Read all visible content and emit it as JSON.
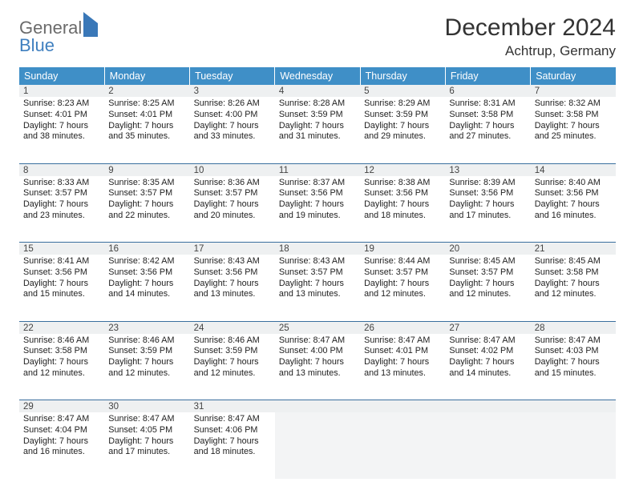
{
  "logo": {
    "line1": "General",
    "line2": "Blue"
  },
  "title": "December 2024",
  "location": "Achtrup, Germany",
  "colors": {
    "header_bg": "#3f8fc7",
    "header_text": "#ffffff",
    "daynum_bg": "#eef0f1",
    "divider": "#3a6f9e",
    "logo_gray": "#6b6b6b",
    "logo_blue": "#3f7fbf"
  },
  "weekdays": [
    "Sunday",
    "Monday",
    "Tuesday",
    "Wednesday",
    "Thursday",
    "Friday",
    "Saturday"
  ],
  "weeks": [
    {
      "nums": [
        "1",
        "2",
        "3",
        "4",
        "5",
        "6",
        "7"
      ],
      "cells": [
        {
          "sunrise": "Sunrise: 8:23 AM",
          "sunset": "Sunset: 4:01 PM",
          "day1": "Daylight: 7 hours",
          "day2": "and 38 minutes."
        },
        {
          "sunrise": "Sunrise: 8:25 AM",
          "sunset": "Sunset: 4:01 PM",
          "day1": "Daylight: 7 hours",
          "day2": "and 35 minutes."
        },
        {
          "sunrise": "Sunrise: 8:26 AM",
          "sunset": "Sunset: 4:00 PM",
          "day1": "Daylight: 7 hours",
          "day2": "and 33 minutes."
        },
        {
          "sunrise": "Sunrise: 8:28 AM",
          "sunset": "Sunset: 3:59 PM",
          "day1": "Daylight: 7 hours",
          "day2": "and 31 minutes."
        },
        {
          "sunrise": "Sunrise: 8:29 AM",
          "sunset": "Sunset: 3:59 PM",
          "day1": "Daylight: 7 hours",
          "day2": "and 29 minutes."
        },
        {
          "sunrise": "Sunrise: 8:31 AM",
          "sunset": "Sunset: 3:58 PM",
          "day1": "Daylight: 7 hours",
          "day2": "and 27 minutes."
        },
        {
          "sunrise": "Sunrise: 8:32 AM",
          "sunset": "Sunset: 3:58 PM",
          "day1": "Daylight: 7 hours",
          "day2": "and 25 minutes."
        }
      ]
    },
    {
      "nums": [
        "8",
        "9",
        "10",
        "11",
        "12",
        "13",
        "14"
      ],
      "cells": [
        {
          "sunrise": "Sunrise: 8:33 AM",
          "sunset": "Sunset: 3:57 PM",
          "day1": "Daylight: 7 hours",
          "day2": "and 23 minutes."
        },
        {
          "sunrise": "Sunrise: 8:35 AM",
          "sunset": "Sunset: 3:57 PM",
          "day1": "Daylight: 7 hours",
          "day2": "and 22 minutes."
        },
        {
          "sunrise": "Sunrise: 8:36 AM",
          "sunset": "Sunset: 3:57 PM",
          "day1": "Daylight: 7 hours",
          "day2": "and 20 minutes."
        },
        {
          "sunrise": "Sunrise: 8:37 AM",
          "sunset": "Sunset: 3:56 PM",
          "day1": "Daylight: 7 hours",
          "day2": "and 19 minutes."
        },
        {
          "sunrise": "Sunrise: 8:38 AM",
          "sunset": "Sunset: 3:56 PM",
          "day1": "Daylight: 7 hours",
          "day2": "and 18 minutes."
        },
        {
          "sunrise": "Sunrise: 8:39 AM",
          "sunset": "Sunset: 3:56 PM",
          "day1": "Daylight: 7 hours",
          "day2": "and 17 minutes."
        },
        {
          "sunrise": "Sunrise: 8:40 AM",
          "sunset": "Sunset: 3:56 PM",
          "day1": "Daylight: 7 hours",
          "day2": "and 16 minutes."
        }
      ]
    },
    {
      "nums": [
        "15",
        "16",
        "17",
        "18",
        "19",
        "20",
        "21"
      ],
      "cells": [
        {
          "sunrise": "Sunrise: 8:41 AM",
          "sunset": "Sunset: 3:56 PM",
          "day1": "Daylight: 7 hours",
          "day2": "and 15 minutes."
        },
        {
          "sunrise": "Sunrise: 8:42 AM",
          "sunset": "Sunset: 3:56 PM",
          "day1": "Daylight: 7 hours",
          "day2": "and 14 minutes."
        },
        {
          "sunrise": "Sunrise: 8:43 AM",
          "sunset": "Sunset: 3:56 PM",
          "day1": "Daylight: 7 hours",
          "day2": "and 13 minutes."
        },
        {
          "sunrise": "Sunrise: 8:43 AM",
          "sunset": "Sunset: 3:57 PM",
          "day1": "Daylight: 7 hours",
          "day2": "and 13 minutes."
        },
        {
          "sunrise": "Sunrise: 8:44 AM",
          "sunset": "Sunset: 3:57 PM",
          "day1": "Daylight: 7 hours",
          "day2": "and 12 minutes."
        },
        {
          "sunrise": "Sunrise: 8:45 AM",
          "sunset": "Sunset: 3:57 PM",
          "day1": "Daylight: 7 hours",
          "day2": "and 12 minutes."
        },
        {
          "sunrise": "Sunrise: 8:45 AM",
          "sunset": "Sunset: 3:58 PM",
          "day1": "Daylight: 7 hours",
          "day2": "and 12 minutes."
        }
      ]
    },
    {
      "nums": [
        "22",
        "23",
        "24",
        "25",
        "26",
        "27",
        "28"
      ],
      "cells": [
        {
          "sunrise": "Sunrise: 8:46 AM",
          "sunset": "Sunset: 3:58 PM",
          "day1": "Daylight: 7 hours",
          "day2": "and 12 minutes."
        },
        {
          "sunrise": "Sunrise: 8:46 AM",
          "sunset": "Sunset: 3:59 PM",
          "day1": "Daylight: 7 hours",
          "day2": "and 12 minutes."
        },
        {
          "sunrise": "Sunrise: 8:46 AM",
          "sunset": "Sunset: 3:59 PM",
          "day1": "Daylight: 7 hours",
          "day2": "and 12 minutes."
        },
        {
          "sunrise": "Sunrise: 8:47 AM",
          "sunset": "Sunset: 4:00 PM",
          "day1": "Daylight: 7 hours",
          "day2": "and 13 minutes."
        },
        {
          "sunrise": "Sunrise: 8:47 AM",
          "sunset": "Sunset: 4:01 PM",
          "day1": "Daylight: 7 hours",
          "day2": "and 13 minutes."
        },
        {
          "sunrise": "Sunrise: 8:47 AM",
          "sunset": "Sunset: 4:02 PM",
          "day1": "Daylight: 7 hours",
          "day2": "and 14 minutes."
        },
        {
          "sunrise": "Sunrise: 8:47 AM",
          "sunset": "Sunset: 4:03 PM",
          "day1": "Daylight: 7 hours",
          "day2": "and 15 minutes."
        }
      ]
    },
    {
      "nums": [
        "29",
        "30",
        "31",
        "",
        "",
        "",
        ""
      ],
      "cells": [
        {
          "sunrise": "Sunrise: 8:47 AM",
          "sunset": "Sunset: 4:04 PM",
          "day1": "Daylight: 7 hours",
          "day2": "and 16 minutes."
        },
        {
          "sunrise": "Sunrise: 8:47 AM",
          "sunset": "Sunset: 4:05 PM",
          "day1": "Daylight: 7 hours",
          "day2": "and 17 minutes."
        },
        {
          "sunrise": "Sunrise: 8:47 AM",
          "sunset": "Sunset: 4:06 PM",
          "day1": "Daylight: 7 hours",
          "day2": "and 18 minutes."
        },
        null,
        null,
        null,
        null
      ]
    }
  ]
}
